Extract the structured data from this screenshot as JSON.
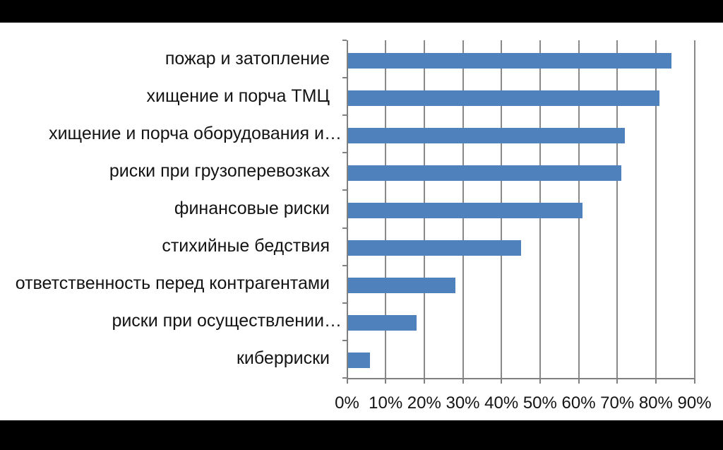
{
  "page": {
    "background_color": "#000000",
    "slide_background_color": "#ffffff"
  },
  "chart_data": {
    "type": "bar",
    "orientation": "horizontal",
    "title": "",
    "categories": [
      "пожар и затопление",
      "хищение и порча ТМЦ",
      "хищение и порча оборудования и…",
      "риски при грузоперевозках",
      "финансовые риски",
      "стихийные бедствия",
      "ответственность перед контрагентами",
      "риски при осуществлении…",
      "киберриски"
    ],
    "values": [
      84,
      81,
      72,
      71,
      61,
      45,
      28,
      18,
      6
    ],
    "unit": "%",
    "xlabel": "",
    "ylabel": "",
    "x_axis": {
      "min": 0,
      "max": 90,
      "step": 10,
      "tick_labels": [
        "0%",
        "10%",
        "20%",
        "30%",
        "40%",
        "50%",
        "60%",
        "70%",
        "80%",
        "90%"
      ]
    },
    "grid": "vertical",
    "legend": "none",
    "bar_color": "#4f81bd",
    "gridline_color": "#898989",
    "axis_color": "#808080",
    "text_color": "#141414"
  }
}
